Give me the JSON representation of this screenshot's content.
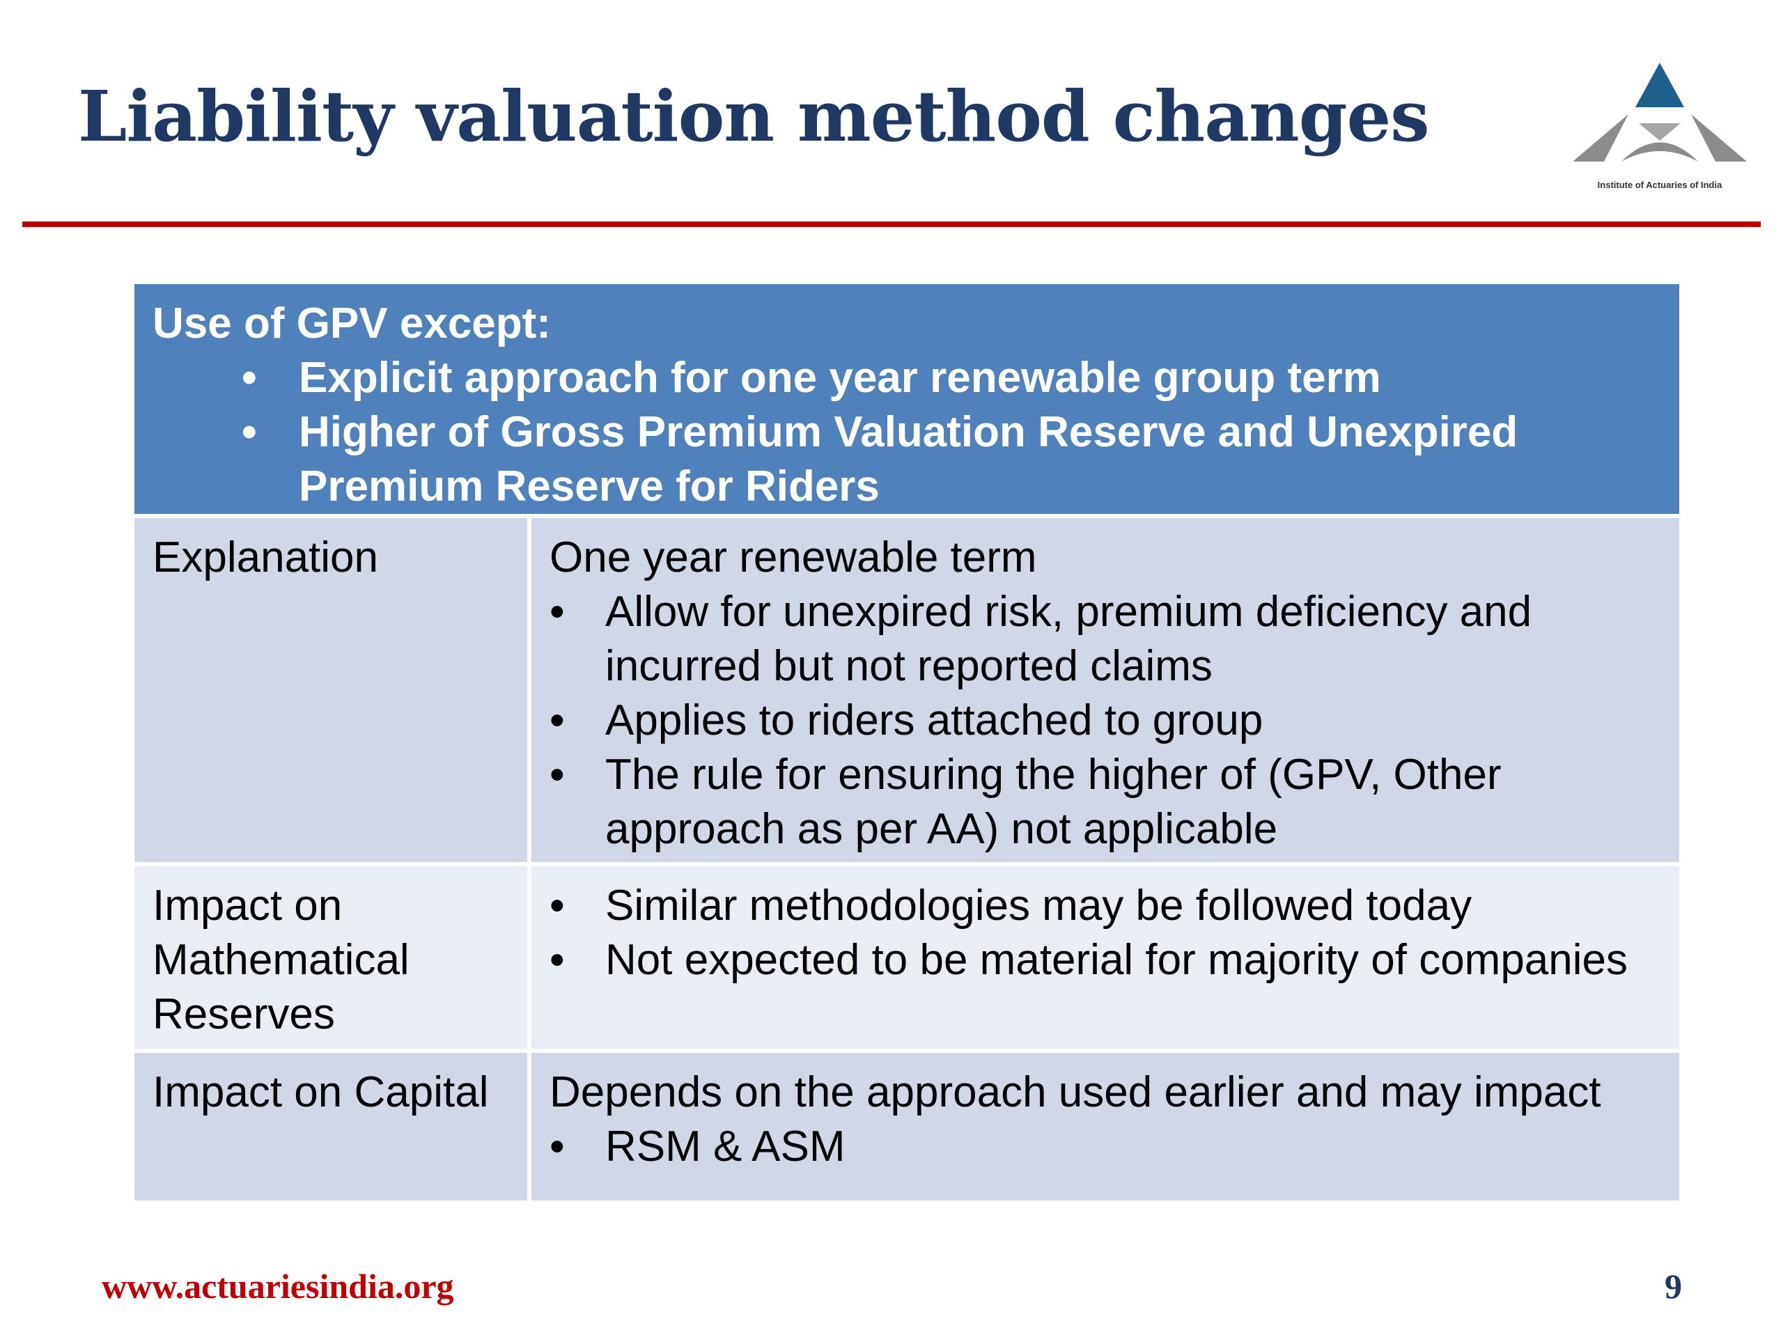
{
  "slide": {
    "title": "Liability valuation method changes",
    "logo_caption": "Institute of Actuaries of India",
    "footer_url": "www.actuariesindia.org",
    "page_number": "9"
  },
  "colors": {
    "title": "#1f3864",
    "rule": "#c00000",
    "header_bg": "#4f81bd",
    "row_shade_a": "#d0d8e8",
    "row_shade_b": "#e9edf4",
    "logo_top": "#1f5f8b",
    "logo_bottom": "#8c8c8c"
  },
  "table": {
    "header": {
      "heading": "Use of GPV except:",
      "bullets": [
        "Explicit approach for one year renewable group term",
        "Higher of Gross Premium Valuation Reserve and Unexpired Premium Reserve for Riders"
      ]
    },
    "rows": [
      {
        "label": "Explanation",
        "intro": "One year renewable term",
        "bullets": [
          "Allow for unexpired risk, premium deficiency and incurred but not reported claims",
          "Applies to riders attached to group",
          "The rule for ensuring the higher of (GPV, Other approach as per AA) not applicable"
        ]
      },
      {
        "label": "Impact on Mathematical Reserves",
        "bullets": [
          "Similar methodologies may be followed today",
          "Not expected to be material for majority of companies"
        ]
      },
      {
        "label": "Impact on Capital",
        "intro": "Depends on the approach used earlier and may impact",
        "bullets": [
          "RSM & ASM"
        ]
      }
    ]
  }
}
